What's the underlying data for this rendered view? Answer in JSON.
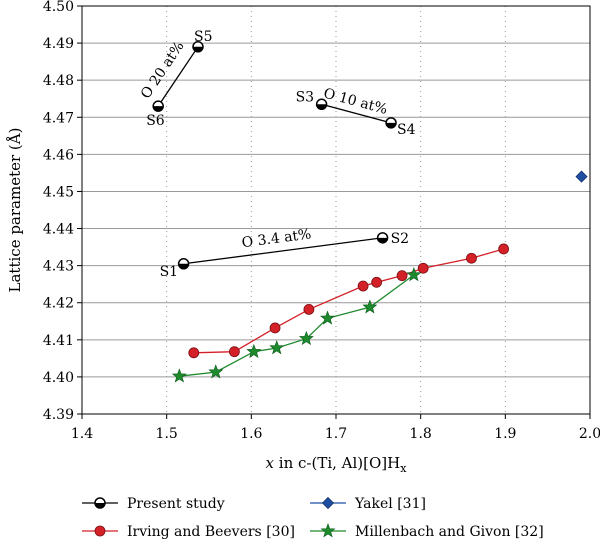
{
  "chart_data": {
    "type": "scatter",
    "xlabel_italic": "x",
    "xlabel_rest": " in c-(Ti, Al)[O]H",
    "xlabel_sub": "x",
    "ylabel": "Lattice parameter (Å)",
    "xlim": [
      1.4,
      2.0
    ],
    "ylim": [
      4.39,
      4.5
    ],
    "xticks": [
      "1.4",
      "1.5",
      "1.6",
      "1.7",
      "1.8",
      "1.9",
      "2.0"
    ],
    "yticks": [
      "4.39",
      "4.40",
      "4.41",
      "4.42",
      "4.43",
      "4.44",
      "4.45",
      "4.46",
      "4.47",
      "4.48",
      "4.49",
      "4.50"
    ],
    "grid": "horizontal-solid, vertical-dotted",
    "legend_position": "bottom",
    "series": [
      {
        "name": "Present study",
        "color": "#000000",
        "marker": "half-circle",
        "segments": [
          {
            "points": [
              {
                "label": "S1",
                "x": 1.52,
                "y": 4.4305
              },
              {
                "label": "S2",
                "x": 1.755,
                "y": 4.4375
              }
            ],
            "annotation": "O 3.4 at%"
          },
          {
            "points": [
              {
                "label": "S3",
                "x": 1.683,
                "y": 4.4735
              },
              {
                "label": "S4",
                "x": 1.765,
                "y": 4.4685
              }
            ],
            "annotation": "O 10 at%"
          },
          {
            "points": [
              {
                "label": "S6",
                "x": 1.49,
                "y": 4.473
              },
              {
                "label": "S5",
                "x": 1.537,
                "y": 4.489
              }
            ],
            "annotation": "O 20 at%"
          }
        ]
      },
      {
        "name": "Irving and Beevers [30]",
        "color": "#d42027",
        "marker": "circle",
        "points": [
          {
            "x": 1.532,
            "y": 4.4065
          },
          {
            "x": 1.58,
            "y": 4.4068
          },
          {
            "x": 1.628,
            "y": 4.4132
          },
          {
            "x": 1.668,
            "y": 4.4182
          },
          {
            "x": 1.732,
            "y": 4.4245
          },
          {
            "x": 1.748,
            "y": 4.4255
          },
          {
            "x": 1.778,
            "y": 4.4273
          },
          {
            "x": 1.803,
            "y": 4.4293
          },
          {
            "x": 1.86,
            "y": 4.432
          },
          {
            "x": 1.898,
            "y": 4.4345
          }
        ]
      },
      {
        "name": "Yakel [31]",
        "color": "#1f4fa3",
        "marker": "diamond",
        "points": [
          {
            "x": 1.99,
            "y": 4.454
          }
        ]
      },
      {
        "name": "Millenbach and Givon [32]",
        "color": "#1e8a2e",
        "marker": "star",
        "points": [
          {
            "x": 1.515,
            "y": 4.4002
          },
          {
            "x": 1.558,
            "y": 4.4013
          },
          {
            "x": 1.603,
            "y": 4.4068
          },
          {
            "x": 1.63,
            "y": 4.4078
          },
          {
            "x": 1.665,
            "y": 4.4103
          },
          {
            "x": 1.69,
            "y": 4.4158
          },
          {
            "x": 1.74,
            "y": 4.4188
          },
          {
            "x": 1.792,
            "y": 4.4275
          }
        ]
      }
    ]
  }
}
